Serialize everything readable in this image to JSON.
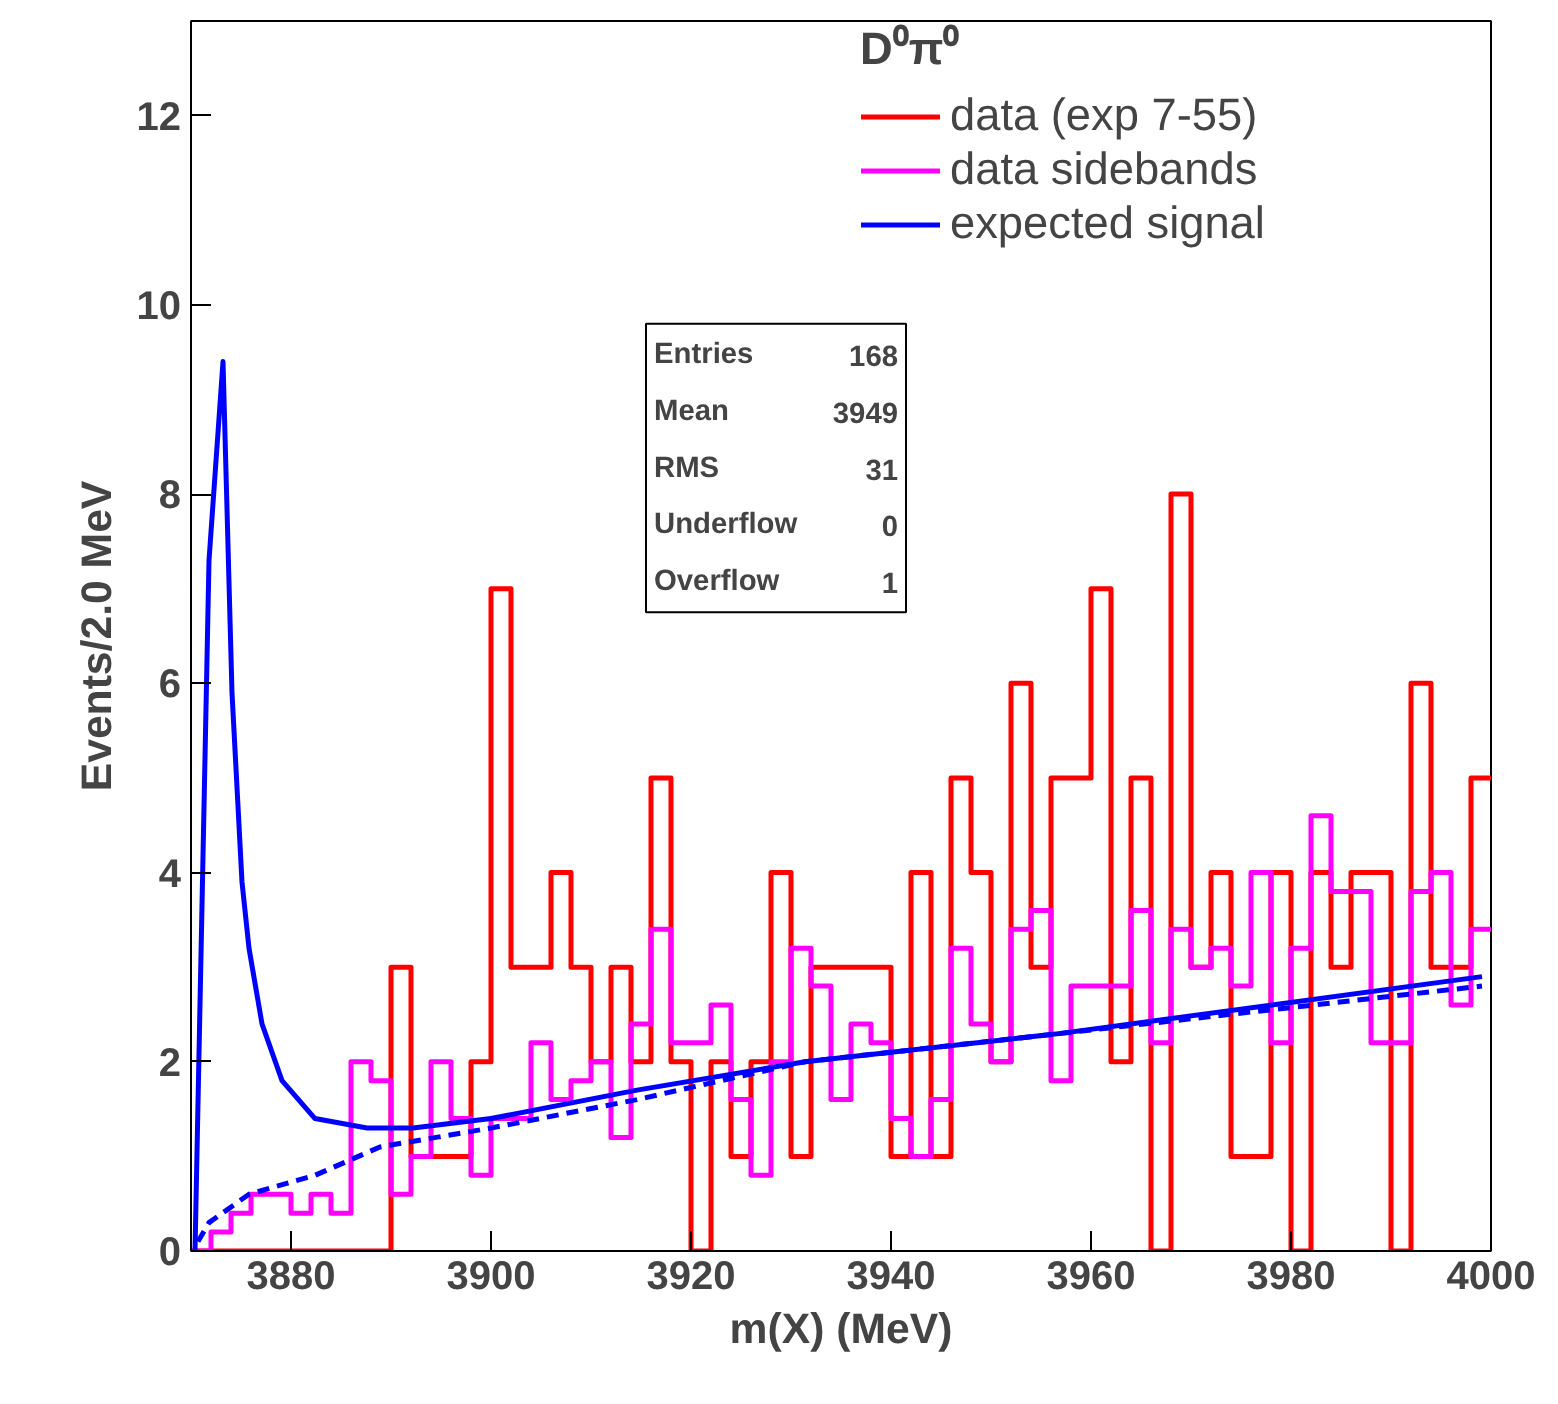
{
  "chart_data": {
    "type": "histogram",
    "legend_title": "D⁰π⁰",
    "xlabel": "m(X) (MeV)",
    "ylabel": "Events/2.0 MeV",
    "bins": [
      3870,
      3872,
      3874,
      3876,
      3878,
      3880,
      3882,
      3884,
      3886,
      3888,
      3890,
      3892,
      3894,
      3896,
      3898,
      3900,
      3902,
      3904,
      3906,
      3908,
      3910,
      3912,
      3914,
      3916,
      3918,
      3920,
      3922,
      3924,
      3926,
      3928,
      3930,
      3932,
      3934,
      3936,
      3938,
      3940,
      3942,
      3944,
      3946,
      3948,
      3950,
      3952,
      3954,
      3956,
      3958,
      3960,
      3962,
      3964,
      3966,
      3968,
      3970,
      3972,
      3974,
      3976,
      3978,
      3980,
      3982,
      3984,
      3986,
      3988,
      3990,
      3992,
      3994,
      3996,
      3998,
      4000
    ],
    "series": [
      {
        "name": "data (exp 7-55)",
        "color": "#ff0000",
        "values": [
          0,
          0,
          0,
          0,
          0,
          0,
          0,
          0,
          0,
          0,
          3,
          1,
          1,
          1,
          2,
          7,
          3,
          3,
          4,
          3,
          2,
          3,
          2,
          5,
          2,
          0,
          2,
          1,
          2,
          4,
          1,
          3,
          3,
          3,
          3,
          1,
          4,
          1,
          5,
          4,
          2,
          6,
          3,
          5,
          5,
          7,
          2,
          5,
          0,
          8,
          3,
          4,
          1,
          1,
          4,
          0,
          4,
          3,
          4,
          4,
          0,
          6,
          3,
          3,
          5
        ]
      },
      {
        "name": "data sidebands",
        "color": "#ff00ff",
        "values": [
          0,
          0.2,
          0.4,
          0.6,
          0.6,
          0.4,
          0.6,
          0.4,
          2.0,
          1.8,
          0.6,
          1.0,
          2.0,
          1.4,
          0.8,
          1.4,
          1.4,
          2.2,
          1.6,
          1.8,
          2.0,
          1.2,
          2.4,
          3.4,
          2.2,
          2.2,
          2.6,
          1.6,
          0.8,
          2.0,
          3.2,
          2.8,
          1.6,
          2.4,
          2.2,
          1.4,
          1.0,
          1.6,
          3.2,
          2.4,
          2.0,
          3.4,
          3.6,
          1.8,
          2.8,
          2.8,
          2.8,
          3.6,
          2.2,
          3.4,
          3.0,
          3.2,
          2.8,
          4.0,
          2.2,
          3.2,
          4.6,
          3.8,
          3.8,
          2.2,
          2.2,
          3.8,
          4.0,
          2.6,
          3.4
        ]
      },
      {
        "name": "expected signal",
        "type": "line",
        "color": "#0000ff",
        "line_style": "solid",
        "x": [
          3870.4,
          3871.8,
          3873.2,
          3874.1,
          3875.1,
          3875.8,
          3877.1,
          3879.1,
          3882.4,
          3887.6,
          3892.2,
          3900,
          3914.6,
          3931.4,
          3957,
          3999.1
        ],
        "values": [
          0,
          7.3,
          9.4,
          5.9,
          3.9,
          3.2,
          2.4,
          1.8,
          1.4,
          1.3,
          1.3,
          1.4,
          1.7,
          2.0,
          2.3,
          2.9
        ]
      },
      {
        "type": "line",
        "color": "#0000ff",
        "line_style": "dashed",
        "x": [
          3870.7,
          3871.8,
          3875.8,
          3882.4,
          3888.9,
          3900,
          3914.6,
          3931.4,
          3957,
          3999.1
        ],
        "values": [
          0.1,
          0.3,
          0.6,
          0.8,
          1.1,
          1.3,
          1.6,
          2.0,
          2.3,
          2.8
        ]
      }
    ],
    "xlim": [
      3870,
      4000
    ],
    "xticks": [
      3880,
      3900,
      3920,
      3940,
      3960,
      3980,
      4000
    ],
    "ylim": [
      0,
      13
    ],
    "yticks": [
      0,
      2,
      4,
      6,
      8,
      10,
      12
    ],
    "grid": false,
    "legend": "top right",
    "annotations": [
      "Entries 168",
      "Mean 3949",
      "RMS 31",
      "Underflow 0",
      "Overflow 1"
    ]
  }
}
